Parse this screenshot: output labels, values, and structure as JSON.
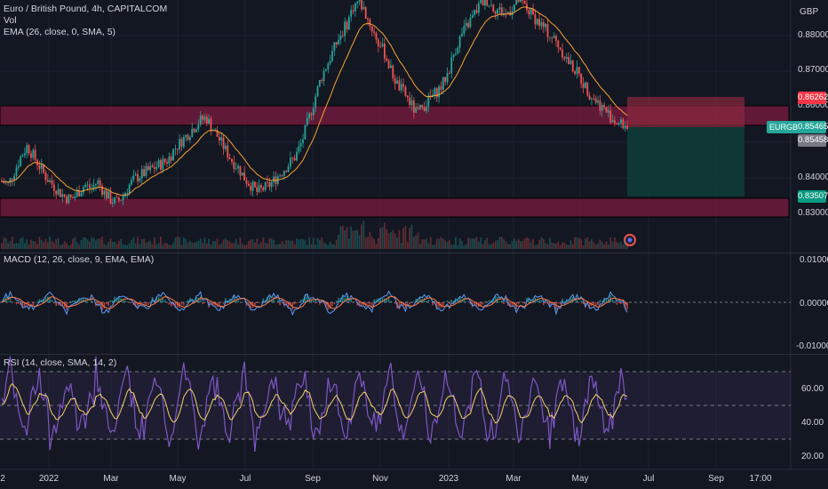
{
  "legend": {
    "title": "Euro / British Pound, 4h, CAPITALCOM",
    "vol": "Vol",
    "ema": "EMA (26, close, 0, SMA, 5)",
    "macd": "MACD (12, 26, close, 9, EMA, EMA)",
    "rsi": "RSI (14, close, SMA, 14, 2)"
  },
  "price_axis": {
    "currency": "GBP",
    "ticks": [
      "0.88000",
      "0.87000",
      "0.86000",
      "0.84000",
      "0.83000"
    ],
    "badges": {
      "target_high": "0.86262",
      "symbol": "EURGBP",
      "last": "0.85465",
      "bid": "0.85458",
      "stop_low": "0.83507"
    }
  },
  "macd_axis": {
    "ticks": [
      "0.01000",
      "0.00000",
      "-0.01000"
    ]
  },
  "rsi_axis": {
    "ticks": [
      "60.00",
      "40.00",
      "20.00"
    ]
  },
  "time_axis": {
    "labels": [
      "2",
      "2022",
      "Mar",
      "May",
      "Jul",
      "Sep",
      "Nov",
      "2023",
      "Mar",
      "May",
      "Jul",
      "Sep",
      "17:00"
    ]
  },
  "colors": {
    "bg": "#131722",
    "zone": "#8a1a44",
    "up": "#26a69a",
    "down": "#ef5350",
    "ema": "#f7a234",
    "rsi": "#7e57c2",
    "rsi_ma": "#f5d16b",
    "macd_line": "#5b9cf6",
    "signal": "#ff7a45"
  },
  "chart_data": {
    "type": "line",
    "price_series": [
      0.839,
      0.838,
      0.842,
      0.846,
      0.849,
      0.846,
      0.843,
      0.84,
      0.838,
      0.836,
      0.8345,
      0.834,
      0.836,
      0.838,
      0.837,
      0.839,
      0.836,
      0.834,
      0.833,
      0.835,
      0.838,
      0.84,
      0.841,
      0.842,
      0.843,
      0.844,
      0.845,
      0.848,
      0.85,
      0.852,
      0.854,
      0.856,
      0.857,
      0.854,
      0.851,
      0.848,
      0.845,
      0.843,
      0.84,
      0.838,
      0.836,
      0.837,
      0.838,
      0.84,
      0.842,
      0.844,
      0.846,
      0.85,
      0.856,
      0.862,
      0.868,
      0.872,
      0.876,
      0.88,
      0.883,
      0.888,
      0.89,
      0.886,
      0.882,
      0.878,
      0.875,
      0.87,
      0.866,
      0.864,
      0.861,
      0.858,
      0.86,
      0.862,
      0.864,
      0.866,
      0.87,
      0.876,
      0.88,
      0.883,
      0.886,
      0.889,
      0.89,
      0.888,
      0.887,
      0.886,
      0.888,
      0.89,
      0.888,
      0.886,
      0.884,
      0.882,
      0.88,
      0.878,
      0.875,
      0.872,
      0.87,
      0.867,
      0.864,
      0.862,
      0.86,
      0.858,
      0.856,
      0.855,
      0.8546
    ]
  }
}
